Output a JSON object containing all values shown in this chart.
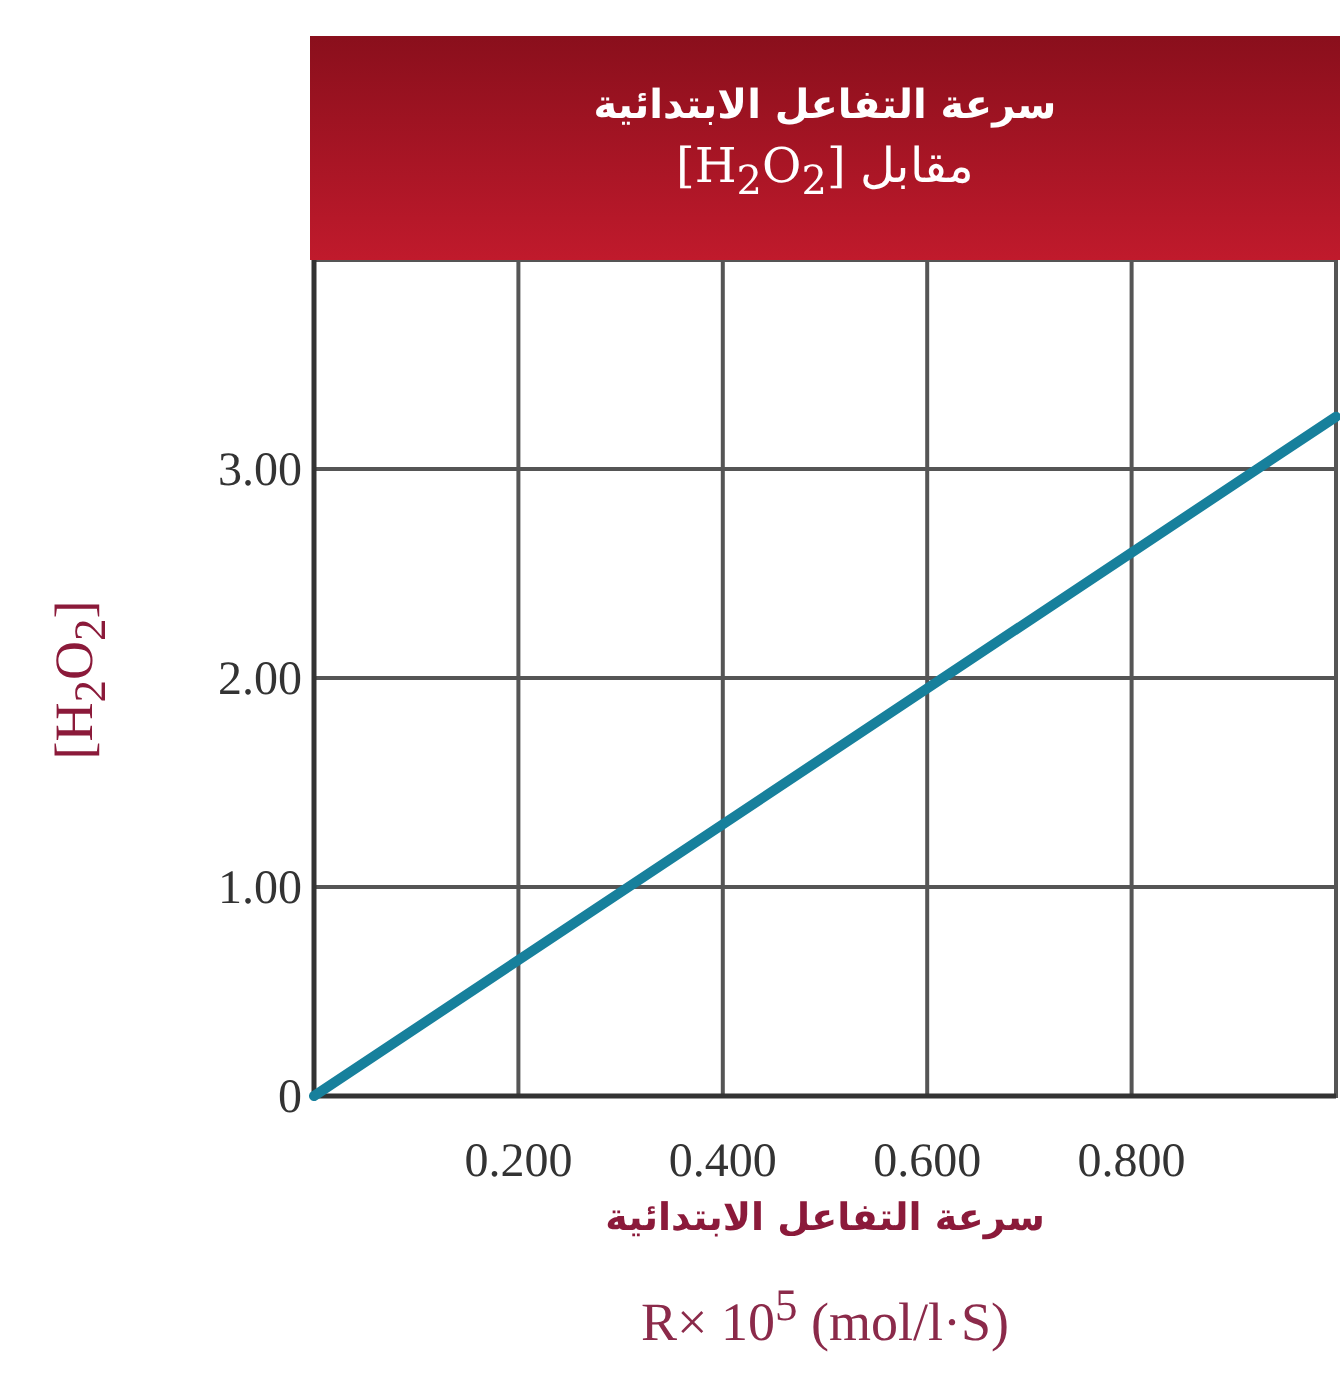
{
  "chart_data": {
    "type": "line",
    "title": "سرعة التفاعل الابتدائية\nمقابل [H$_{2}$O$_{2}$]",
    "xlabel": "سرعة التفاعل الابتدائية\nR× 10$^{5}$ (mol/l·S)",
    "ylabel": "[H$_{2}$O$_{2}$]",
    "xlim": [
      0,
      1
    ],
    "xticks": [
      {
        "value": 0.2,
        "label": "0.200"
      },
      {
        "value": 0.4,
        "label": "0.400"
      },
      {
        "value": 0.6,
        "label": "0.600"
      },
      {
        "value": 0.8,
        "label": "0.800"
      }
    ],
    "ylim": [
      0,
      4
    ],
    "yticks": [
      0,
      {
        "value": 1,
        "label": "1.00"
      },
      {
        "value": 2,
        "label": "2.00"
      },
      {
        "value": 3,
        "label": "3.00"
      },
      {
        "value": 4,
        "label": null
      }
    ],
    "grid": true,
    "marker": "none",
    "line_style": "solid",
    "series": [
      {
        "color": "#17809c",
        "x": [
          0,
          1
        ],
        "values": [
          0,
          3.25
        ]
      }
    ]
  }
}
